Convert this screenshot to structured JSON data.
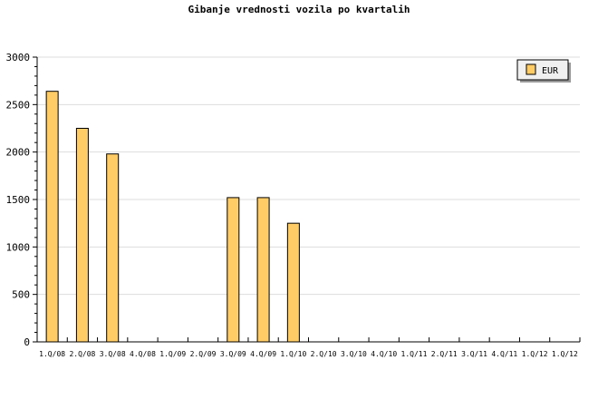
{
  "chart_data": {
    "type": "bar",
    "title": "Gibanje vrednosti vozila po kvartalih",
    "xlabel": "",
    "ylabel": "",
    "categories": [
      "1.Q/08",
      "2.Q/08",
      "3.Q/08",
      "4.Q/08",
      "1.Q/09",
      "2.Q/09",
      "3.Q/09",
      "4.Q/09",
      "1.Q/10",
      "2.Q/10",
      "3.Q/10",
      "4.Q/10",
      "1.Q/11",
      "2.Q/11",
      "3.Q/11",
      "4.Q/11",
      "1.Q/12",
      "1.Q/12"
    ],
    "series": [
      {
        "name": "EUR",
        "color": "#ffcc66",
        "values": [
          2640,
          2250,
          1980,
          null,
          null,
          null,
          1520,
          1520,
          1250,
          null,
          null,
          null,
          null,
          null,
          null,
          null,
          null,
          null
        ]
      }
    ],
    "ylim": [
      0,
      3000
    ],
    "yticks": [
      0,
      500,
      1000,
      1500,
      2000,
      2500,
      3000
    ],
    "grid": true,
    "legend": "top-right"
  }
}
